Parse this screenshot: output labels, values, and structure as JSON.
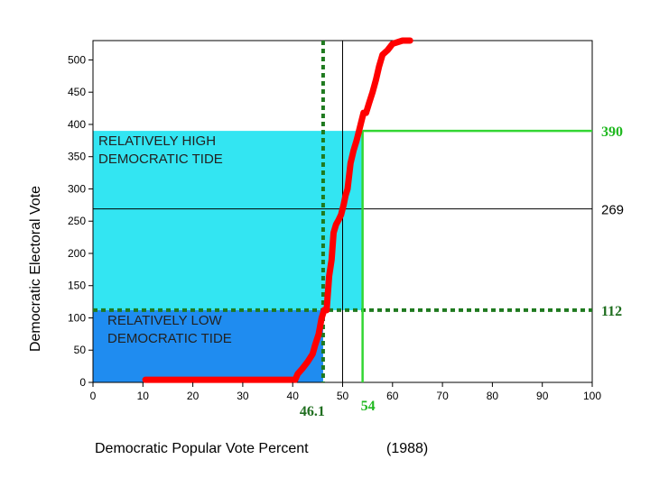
{
  "chart_data": {
    "type": "line",
    "xlabel": "Democratic Popular Vote Percent",
    "xlabel_note": "(1988)",
    "ylabel": "Democratic Electoral Vote",
    "xlim": [
      0,
      100
    ],
    "ylim": [
      0,
      530
    ],
    "x_ticks": [
      "0",
      "10",
      "20",
      "30",
      "40",
      "50",
      "60",
      "70",
      "80",
      "90",
      "100"
    ],
    "y_ticks": [
      "0",
      "50",
      "100",
      "150",
      "200",
      "250",
      "300",
      "350",
      "400",
      "450",
      "500"
    ],
    "grid": false,
    "regions": [
      {
        "name": "high",
        "label_lines": [
          "RELATIVELY HIGH",
          "DEMOCRATIC TIDE"
        ],
        "x_range": [
          0,
          54
        ],
        "y_range": [
          112,
          390
        ],
        "color": "#33e5f2"
      },
      {
        "name": "low",
        "label_lines": [
          "RELATIVELY LOW",
          "DEMOCRATIC TIDE"
        ],
        "x_range": [
          0,
          46.1
        ],
        "y_range": [
          0,
          112
        ],
        "color": "#1f8cf0"
      }
    ],
    "reference_lines": [
      {
        "orientation": "horizontal",
        "value": 390,
        "label": "390",
        "style": "solid",
        "color": "#33d633"
      },
      {
        "orientation": "horizontal",
        "value": 269,
        "label": "269",
        "style": "solid",
        "color": "#000000"
      },
      {
        "orientation": "horizontal",
        "value": 112,
        "label": "112",
        "style": "dotted",
        "color": "#1f7a1f"
      },
      {
        "orientation": "vertical",
        "value": 46.1,
        "label": "46.1",
        "style": "dotted",
        "color": "#1f7a1f"
      },
      {
        "orientation": "vertical",
        "value": 50,
        "label": "",
        "style": "solid",
        "color": "#000000"
      },
      {
        "orientation": "vertical",
        "value": 54,
        "label": "54",
        "style": "solid",
        "color": "#33d633"
      }
    ],
    "series": [
      {
        "color": "#ff0000",
        "x": [
          10.5,
          40.5,
          41.0,
          42.0,
          43.0,
          44.0,
          44.5,
          45.2,
          45.8,
          46.3,
          46.8,
          47.3,
          47.8,
          48.2,
          48.7,
          49.2,
          49.7,
          50.2,
          50.6,
          51.0,
          51.6,
          52.2,
          52.8,
          53.3,
          53.7,
          54.2,
          54.7,
          55.3,
          56.0,
          56.7,
          57.3,
          58.0,
          59.0,
          60.0,
          62.0,
          63.5
        ],
        "y": [
          4,
          4,
          13,
          22,
          32,
          44,
          58,
          75,
          100,
          112,
          112,
          165,
          190,
          232,
          245,
          252,
          260,
          275,
          290,
          300,
          340,
          360,
          375,
          390,
          403,
          418,
          418,
          433,
          450,
          470,
          490,
          508,
          515,
          525,
          530,
          530
        ]
      }
    ]
  }
}
